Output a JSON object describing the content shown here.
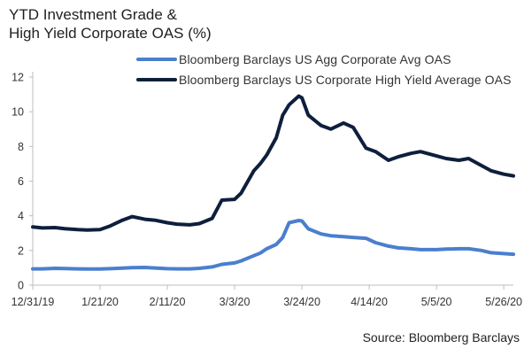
{
  "chart_data": {
    "type": "line",
    "title_line1": "YTD Investment Grade &",
    "title_line2": "High Yield Corporate OAS (%)",
    "xlabel": "",
    "ylabel": "",
    "xlim": [
      "2019-12-31",
      "2020-05-29"
    ],
    "ylim": [
      0,
      12
    ],
    "y_ticks": [
      0,
      2,
      4,
      6,
      8,
      10,
      12
    ],
    "x_ticks": [
      {
        "date": "2019-12-31",
        "label": "12/31/19"
      },
      {
        "date": "2020-01-21",
        "label": "1/21/20"
      },
      {
        "date": "2020-02-11",
        "label": "2/11/20"
      },
      {
        "date": "2020-03-03",
        "label": "3/3/20"
      },
      {
        "date": "2020-03-24",
        "label": "3/24/20"
      },
      {
        "date": "2020-04-14",
        "label": "4/14/20"
      },
      {
        "date": "2020-05-05",
        "label": "5/5/20"
      },
      {
        "date": "2020-05-26",
        "label": "5/26/20"
      }
    ],
    "grid": false,
    "legend_position": "top-right",
    "series": [
      {
        "name": "Bloomberg Barclays US Agg Corporate Avg OAS",
        "color": "#4a7fce",
        "points": [
          [
            "2019-12-31",
            0.94
          ],
          [
            "2020-01-03",
            0.94
          ],
          [
            "2020-01-07",
            0.97
          ],
          [
            "2020-01-10",
            0.96
          ],
          [
            "2020-01-14",
            0.94
          ],
          [
            "2020-01-17",
            0.93
          ],
          [
            "2020-01-21",
            0.93
          ],
          [
            "2020-01-24",
            0.95
          ],
          [
            "2020-01-28",
            0.98
          ],
          [
            "2020-01-31",
            1.01
          ],
          [
            "2020-02-04",
            1.02
          ],
          [
            "2020-02-07",
            0.99
          ],
          [
            "2020-02-11",
            0.95
          ],
          [
            "2020-02-14",
            0.94
          ],
          [
            "2020-02-18",
            0.94
          ],
          [
            "2020-02-21",
            0.97
          ],
          [
            "2020-02-25",
            1.05
          ],
          [
            "2020-02-28",
            1.2
          ],
          [
            "2020-03-03",
            1.28
          ],
          [
            "2020-03-05",
            1.4
          ],
          [
            "2020-03-09",
            1.7
          ],
          [
            "2020-03-11",
            1.85
          ],
          [
            "2020-03-13",
            2.1
          ],
          [
            "2020-03-16",
            2.35
          ],
          [
            "2020-03-18",
            2.75
          ],
          [
            "2020-03-20",
            3.6
          ],
          [
            "2020-03-23",
            3.73
          ],
          [
            "2020-03-24",
            3.7
          ],
          [
            "2020-03-26",
            3.25
          ],
          [
            "2020-03-30",
            2.95
          ],
          [
            "2020-04-02",
            2.85
          ],
          [
            "2020-04-06",
            2.8
          ],
          [
            "2020-04-09",
            2.75
          ],
          [
            "2020-04-13",
            2.7
          ],
          [
            "2020-04-16",
            2.45
          ],
          [
            "2020-04-20",
            2.25
          ],
          [
            "2020-04-23",
            2.15
          ],
          [
            "2020-04-27",
            2.1
          ],
          [
            "2020-04-30",
            2.05
          ],
          [
            "2020-05-05",
            2.05
          ],
          [
            "2020-05-08",
            2.08
          ],
          [
            "2020-05-12",
            2.1
          ],
          [
            "2020-05-15",
            2.1
          ],
          [
            "2020-05-19",
            2.0
          ],
          [
            "2020-05-22",
            1.87
          ],
          [
            "2020-05-26",
            1.82
          ],
          [
            "2020-05-29",
            1.78
          ]
        ]
      },
      {
        "name": "Bloomberg Barclays US Corporate High Yield Average OAS",
        "color": "#0e1f3d",
        "points": [
          [
            "2019-12-31",
            3.36
          ],
          [
            "2020-01-03",
            3.3
          ],
          [
            "2020-01-07",
            3.32
          ],
          [
            "2020-01-10",
            3.26
          ],
          [
            "2020-01-14",
            3.2
          ],
          [
            "2020-01-17",
            3.18
          ],
          [
            "2020-01-21",
            3.2
          ],
          [
            "2020-01-24",
            3.4
          ],
          [
            "2020-01-28",
            3.75
          ],
          [
            "2020-01-31",
            3.95
          ],
          [
            "2020-02-04",
            3.8
          ],
          [
            "2020-02-07",
            3.75
          ],
          [
            "2020-02-11",
            3.6
          ],
          [
            "2020-02-14",
            3.52
          ],
          [
            "2020-02-18",
            3.48
          ],
          [
            "2020-02-21",
            3.55
          ],
          [
            "2020-02-25",
            3.85
          ],
          [
            "2020-02-28",
            4.9
          ],
          [
            "2020-03-03",
            4.95
          ],
          [
            "2020-03-05",
            5.3
          ],
          [
            "2020-03-09",
            6.6
          ],
          [
            "2020-03-11",
            7.0
          ],
          [
            "2020-03-13",
            7.5
          ],
          [
            "2020-03-16",
            8.5
          ],
          [
            "2020-03-18",
            9.8
          ],
          [
            "2020-03-20",
            10.4
          ],
          [
            "2020-03-23",
            10.9
          ],
          [
            "2020-03-24",
            10.8
          ],
          [
            "2020-03-26",
            9.8
          ],
          [
            "2020-03-30",
            9.2
          ],
          [
            "2020-04-02",
            9.0
          ],
          [
            "2020-04-06",
            9.35
          ],
          [
            "2020-04-09",
            9.1
          ],
          [
            "2020-04-13",
            7.9
          ],
          [
            "2020-04-16",
            7.7
          ],
          [
            "2020-04-20",
            7.2
          ],
          [
            "2020-04-23",
            7.4
          ],
          [
            "2020-04-27",
            7.6
          ],
          [
            "2020-04-30",
            7.7
          ],
          [
            "2020-05-05",
            7.45
          ],
          [
            "2020-05-08",
            7.3
          ],
          [
            "2020-05-12",
            7.2
          ],
          [
            "2020-05-15",
            7.3
          ],
          [
            "2020-05-19",
            6.9
          ],
          [
            "2020-05-22",
            6.6
          ],
          [
            "2020-05-26",
            6.4
          ],
          [
            "2020-05-29",
            6.3
          ]
        ]
      }
    ]
  },
  "footer": {
    "source": "Source: Bloomberg Barclays"
  }
}
